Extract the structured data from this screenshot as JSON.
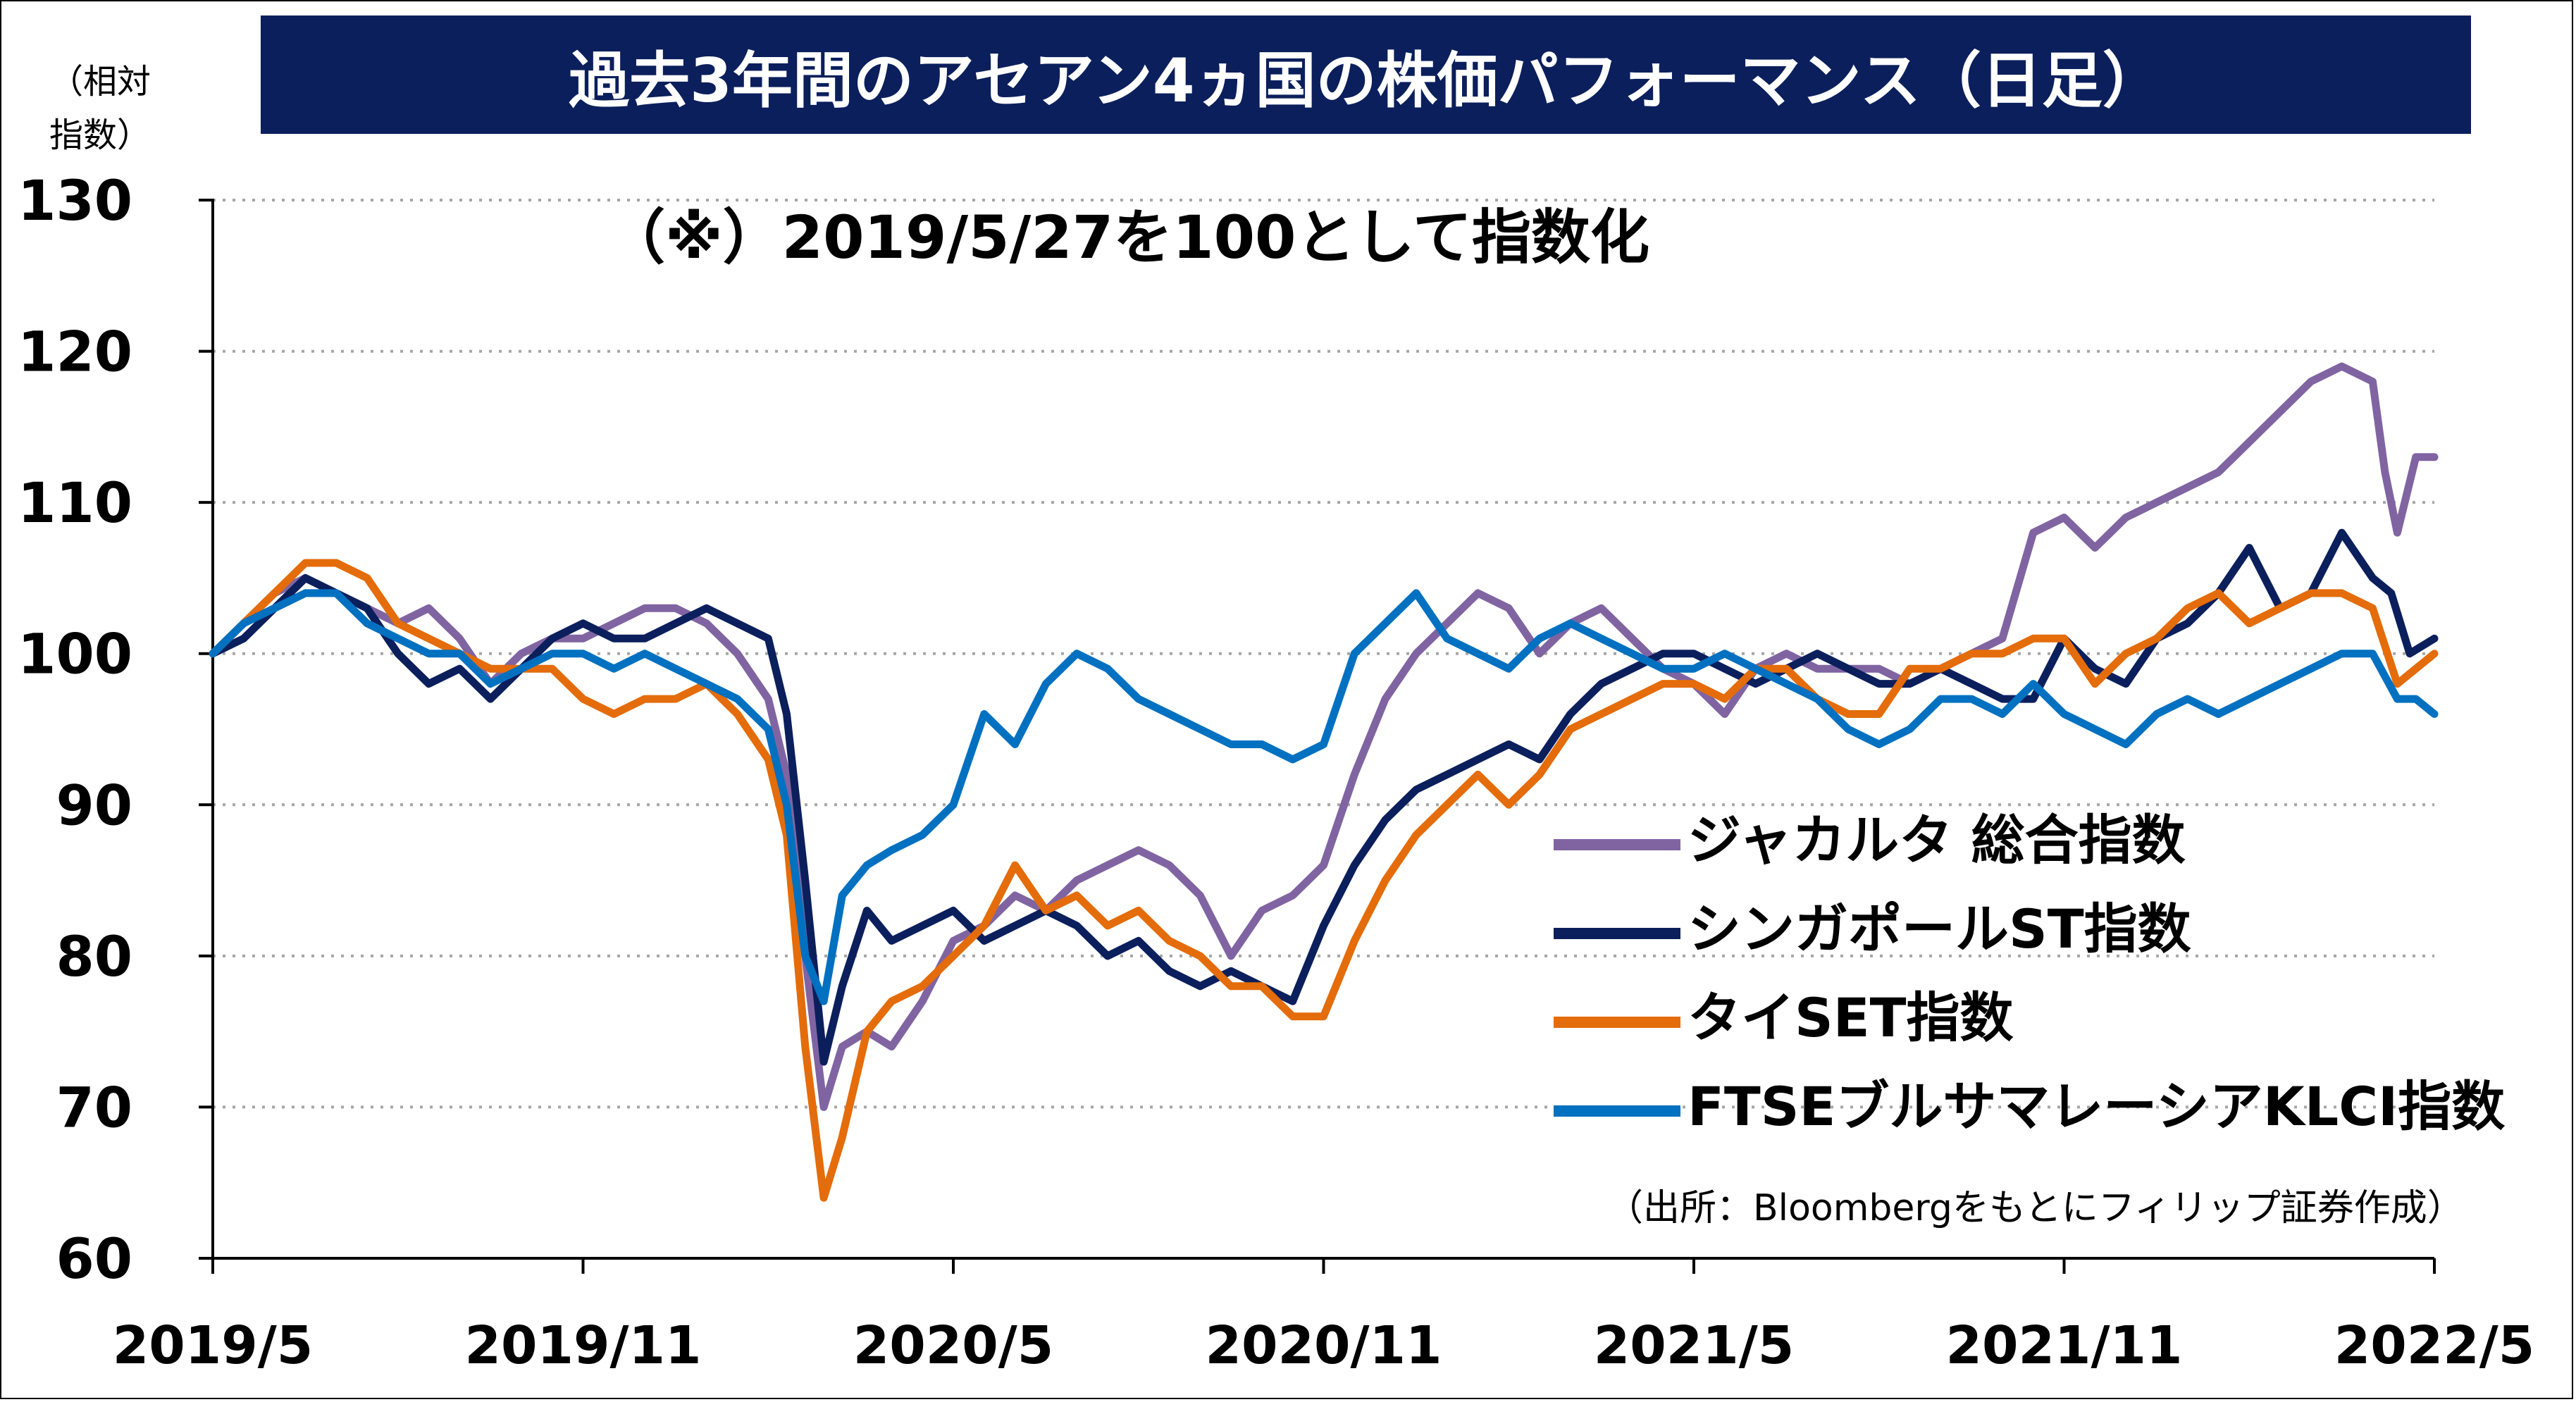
{
  "title": "過去3年間のアセアン4ヵ国の株価パフォーマンス（日足）",
  "note": "（※）2019/5/27を100として指数化",
  "source": "（出所：Bloombergをもとにフィリップ証券作成）",
  "chart_data": {
    "type": "line",
    "ylabel": "（相対指数）",
    "ylabel_lines": [
      "（相対",
      "指数）"
    ],
    "ylim": [
      60,
      130
    ],
    "yticks": [
      60,
      70,
      80,
      90,
      100,
      110,
      120,
      130
    ],
    "grid": true,
    "grid_style": "dotted horizontal",
    "xlim": [
      0,
      36
    ],
    "x_ticks": [
      {
        "m": 0,
        "label": "2019/5"
      },
      {
        "m": 6,
        "label": "2019/11"
      },
      {
        "m": 12,
        "label": "2020/5"
      },
      {
        "m": 18,
        "label": "2020/11"
      },
      {
        "m": 24,
        "label": "2021/5"
      },
      {
        "m": 30,
        "label": "2021/11"
      },
      {
        "m": 36,
        "label": "2022/5"
      }
    ],
    "x_unit": "months since 2019/5",
    "legend_position": "lower-right",
    "series": [
      {
        "name": "ジャカルタ 総合指数",
        "color": "#8064a2",
        "points": [
          [
            0,
            100
          ],
          [
            0.5,
            102
          ],
          [
            1,
            104
          ],
          [
            1.5,
            105
          ],
          [
            2,
            104
          ],
          [
            2.5,
            103
          ],
          [
            3,
            102
          ],
          [
            3.5,
            103
          ],
          [
            4,
            101
          ],
          [
            4.5,
            98
          ],
          [
            5,
            100
          ],
          [
            5.5,
            101
          ],
          [
            6,
            101
          ],
          [
            6.5,
            102
          ],
          [
            7,
            103
          ],
          [
            7.5,
            103
          ],
          [
            8,
            102
          ],
          [
            8.5,
            100
          ],
          [
            9,
            97
          ],
          [
            9.3,
            92
          ],
          [
            9.6,
            80
          ],
          [
            9.9,
            70
          ],
          [
            10.2,
            74
          ],
          [
            10.6,
            75
          ],
          [
            11,
            74
          ],
          [
            11.5,
            77
          ],
          [
            12,
            81
          ],
          [
            12.5,
            82
          ],
          [
            13,
            84
          ],
          [
            13.5,
            83
          ],
          [
            14,
            85
          ],
          [
            14.5,
            86
          ],
          [
            15,
            87
          ],
          [
            15.5,
            86
          ],
          [
            16,
            84
          ],
          [
            16.5,
            80
          ],
          [
            17,
            83
          ],
          [
            17.5,
            84
          ],
          [
            18,
            86
          ],
          [
            18.5,
            92
          ],
          [
            19,
            97
          ],
          [
            19.5,
            100
          ],
          [
            20,
            102
          ],
          [
            20.5,
            104
          ],
          [
            21,
            103
          ],
          [
            21.5,
            100
          ],
          [
            22,
            102
          ],
          [
            22.5,
            103
          ],
          [
            23,
            101
          ],
          [
            23.5,
            99
          ],
          [
            24,
            98
          ],
          [
            24.5,
            96
          ],
          [
            25,
            99
          ],
          [
            25.5,
            100
          ],
          [
            26,
            99
          ],
          [
            26.5,
            99
          ],
          [
            27,
            99
          ],
          [
            27.5,
            98
          ],
          [
            28,
            99
          ],
          [
            28.5,
            100
          ],
          [
            29,
            101
          ],
          [
            29.5,
            108
          ],
          [
            30,
            109
          ],
          [
            30.5,
            107
          ],
          [
            31,
            109
          ],
          [
            31.5,
            110
          ],
          [
            32,
            111
          ],
          [
            32.5,
            112
          ],
          [
            33,
            114
          ],
          [
            33.5,
            116
          ],
          [
            34,
            118
          ],
          [
            34.5,
            119
          ],
          [
            35,
            118
          ],
          [
            35.2,
            112
          ],
          [
            35.4,
            108
          ],
          [
            35.7,
            113
          ],
          [
            36,
            113
          ]
        ]
      },
      {
        "name": "シンガポールST指数",
        "color": "#0b1f5c",
        "points": [
          [
            0,
            100
          ],
          [
            0.5,
            101
          ],
          [
            1,
            103
          ],
          [
            1.5,
            105
          ],
          [
            2,
            104
          ],
          [
            2.5,
            103
          ],
          [
            3,
            100
          ],
          [
            3.5,
            98
          ],
          [
            4,
            99
          ],
          [
            4.5,
            97
          ],
          [
            5,
            99
          ],
          [
            5.5,
            101
          ],
          [
            6,
            102
          ],
          [
            6.5,
            101
          ],
          [
            7,
            101
          ],
          [
            7.5,
            102
          ],
          [
            8,
            103
          ],
          [
            8.5,
            102
          ],
          [
            9,
            101
          ],
          [
            9.3,
            96
          ],
          [
            9.6,
            85
          ],
          [
            9.9,
            73
          ],
          [
            10.2,
            78
          ],
          [
            10.6,
            83
          ],
          [
            11,
            81
          ],
          [
            11.5,
            82
          ],
          [
            12,
            83
          ],
          [
            12.5,
            81
          ],
          [
            13,
            82
          ],
          [
            13.5,
            83
          ],
          [
            14,
            82
          ],
          [
            14.5,
            80
          ],
          [
            15,
            81
          ],
          [
            15.5,
            79
          ],
          [
            16,
            78
          ],
          [
            16.5,
            79
          ],
          [
            17,
            78
          ],
          [
            17.5,
            77
          ],
          [
            18,
            82
          ],
          [
            18.5,
            86
          ],
          [
            19,
            89
          ],
          [
            19.5,
            91
          ],
          [
            20,
            92
          ],
          [
            20.5,
            93
          ],
          [
            21,
            94
          ],
          [
            21.5,
            93
          ],
          [
            22,
            96
          ],
          [
            22.5,
            98
          ],
          [
            23,
            99
          ],
          [
            23.5,
            100
          ],
          [
            24,
            100
          ],
          [
            24.5,
            99
          ],
          [
            25,
            98
          ],
          [
            25.5,
            99
          ],
          [
            26,
            100
          ],
          [
            26.5,
            99
          ],
          [
            27,
            98
          ],
          [
            27.5,
            98
          ],
          [
            28,
            99
          ],
          [
            28.5,
            98
          ],
          [
            29,
            97
          ],
          [
            29.5,
            97
          ],
          [
            30,
            101
          ],
          [
            30.5,
            99
          ],
          [
            31,
            98
          ],
          [
            31.5,
            101
          ],
          [
            32,
            102
          ],
          [
            32.5,
            104
          ],
          [
            33,
            107
          ],
          [
            33.5,
            103
          ],
          [
            34,
            104
          ],
          [
            34.5,
            108
          ],
          [
            35,
            105
          ],
          [
            35.3,
            104
          ],
          [
            35.6,
            100
          ],
          [
            36,
            101
          ]
        ]
      },
      {
        "name": "タイSET指数",
        "color": "#e46c0a",
        "points": [
          [
            0,
            100
          ],
          [
            0.5,
            102
          ],
          [
            1,
            104
          ],
          [
            1.5,
            106
          ],
          [
            2,
            106
          ],
          [
            2.5,
            105
          ],
          [
            3,
            102
          ],
          [
            3.5,
            101
          ],
          [
            4,
            100
          ],
          [
            4.5,
            99
          ],
          [
            5,
            99
          ],
          [
            5.5,
            99
          ],
          [
            6,
            97
          ],
          [
            6.5,
            96
          ],
          [
            7,
            97
          ],
          [
            7.5,
            97
          ],
          [
            8,
            98
          ],
          [
            8.5,
            96
          ],
          [
            9,
            93
          ],
          [
            9.3,
            88
          ],
          [
            9.6,
            74
          ],
          [
            9.9,
            64
          ],
          [
            10.2,
            68
          ],
          [
            10.6,
            75
          ],
          [
            11,
            77
          ],
          [
            11.5,
            78
          ],
          [
            12,
            80
          ],
          [
            12.5,
            82
          ],
          [
            13,
            86
          ],
          [
            13.5,
            83
          ],
          [
            14,
            84
          ],
          [
            14.5,
            82
          ],
          [
            15,
            83
          ],
          [
            15.5,
            81
          ],
          [
            16,
            80
          ],
          [
            16.5,
            78
          ],
          [
            17,
            78
          ],
          [
            17.5,
            76
          ],
          [
            18,
            76
          ],
          [
            18.5,
            81
          ],
          [
            19,
            85
          ],
          [
            19.5,
            88
          ],
          [
            20,
            90
          ],
          [
            20.5,
            92
          ],
          [
            21,
            90
          ],
          [
            21.5,
            92
          ],
          [
            22,
            95
          ],
          [
            22.5,
            96
          ],
          [
            23,
            97
          ],
          [
            23.5,
            98
          ],
          [
            24,
            98
          ],
          [
            24.5,
            97
          ],
          [
            25,
            99
          ],
          [
            25.5,
            99
          ],
          [
            26,
            97
          ],
          [
            26.5,
            96
          ],
          [
            27,
            96
          ],
          [
            27.5,
            99
          ],
          [
            28,
            99
          ],
          [
            28.5,
            100
          ],
          [
            29,
            100
          ],
          [
            29.5,
            101
          ],
          [
            30,
            101
          ],
          [
            30.5,
            98
          ],
          [
            31,
            100
          ],
          [
            31.5,
            101
          ],
          [
            32,
            103
          ],
          [
            32.5,
            104
          ],
          [
            33,
            102
          ],
          [
            33.5,
            103
          ],
          [
            34,
            104
          ],
          [
            34.5,
            104
          ],
          [
            35,
            103
          ],
          [
            35.4,
            98
          ],
          [
            35.7,
            99
          ],
          [
            36,
            100
          ]
        ]
      },
      {
        "name": "FTSEブルサマレーシアKLCI指数",
        "color": "#0070c0",
        "points": [
          [
            0,
            100
          ],
          [
            0.5,
            102
          ],
          [
            1,
            103
          ],
          [
            1.5,
            104
          ],
          [
            2,
            104
          ],
          [
            2.5,
            102
          ],
          [
            3,
            101
          ],
          [
            3.5,
            100
          ],
          [
            4,
            100
          ],
          [
            4.5,
            98
          ],
          [
            5,
            99
          ],
          [
            5.5,
            100
          ],
          [
            6,
            100
          ],
          [
            6.5,
            99
          ],
          [
            7,
            100
          ],
          [
            7.5,
            99
          ],
          [
            8,
            98
          ],
          [
            8.5,
            97
          ],
          [
            9,
            95
          ],
          [
            9.3,
            90
          ],
          [
            9.6,
            80
          ],
          [
            9.9,
            77
          ],
          [
            10.2,
            84
          ],
          [
            10.6,
            86
          ],
          [
            11,
            87
          ],
          [
            11.5,
            88
          ],
          [
            12,
            90
          ],
          [
            12.5,
            96
          ],
          [
            13,
            94
          ],
          [
            13.5,
            98
          ],
          [
            14,
            100
          ],
          [
            14.5,
            99
          ],
          [
            15,
            97
          ],
          [
            15.5,
            96
          ],
          [
            16,
            95
          ],
          [
            16.5,
            94
          ],
          [
            17,
            94
          ],
          [
            17.5,
            93
          ],
          [
            18,
            94
          ],
          [
            18.5,
            100
          ],
          [
            19,
            102
          ],
          [
            19.5,
            104
          ],
          [
            20,
            101
          ],
          [
            20.5,
            100
          ],
          [
            21,
            99
          ],
          [
            21.5,
            101
          ],
          [
            22,
            102
          ],
          [
            22.5,
            101
          ],
          [
            23,
            100
          ],
          [
            23.5,
            99
          ],
          [
            24,
            99
          ],
          [
            24.5,
            100
          ],
          [
            25,
            99
          ],
          [
            25.5,
            98
          ],
          [
            26,
            97
          ],
          [
            26.5,
            95
          ],
          [
            27,
            94
          ],
          [
            27.5,
            95
          ],
          [
            28,
            97
          ],
          [
            28.5,
            97
          ],
          [
            29,
            96
          ],
          [
            29.5,
            98
          ],
          [
            30,
            96
          ],
          [
            30.5,
            95
          ],
          [
            31,
            94
          ],
          [
            31.5,
            96
          ],
          [
            32,
            97
          ],
          [
            32.5,
            96
          ],
          [
            33,
            97
          ],
          [
            33.5,
            98
          ],
          [
            34,
            99
          ],
          [
            34.5,
            100
          ],
          [
            35,
            100
          ],
          [
            35.4,
            97
          ],
          [
            35.7,
            97
          ],
          [
            36,
            96
          ]
        ]
      }
    ]
  }
}
